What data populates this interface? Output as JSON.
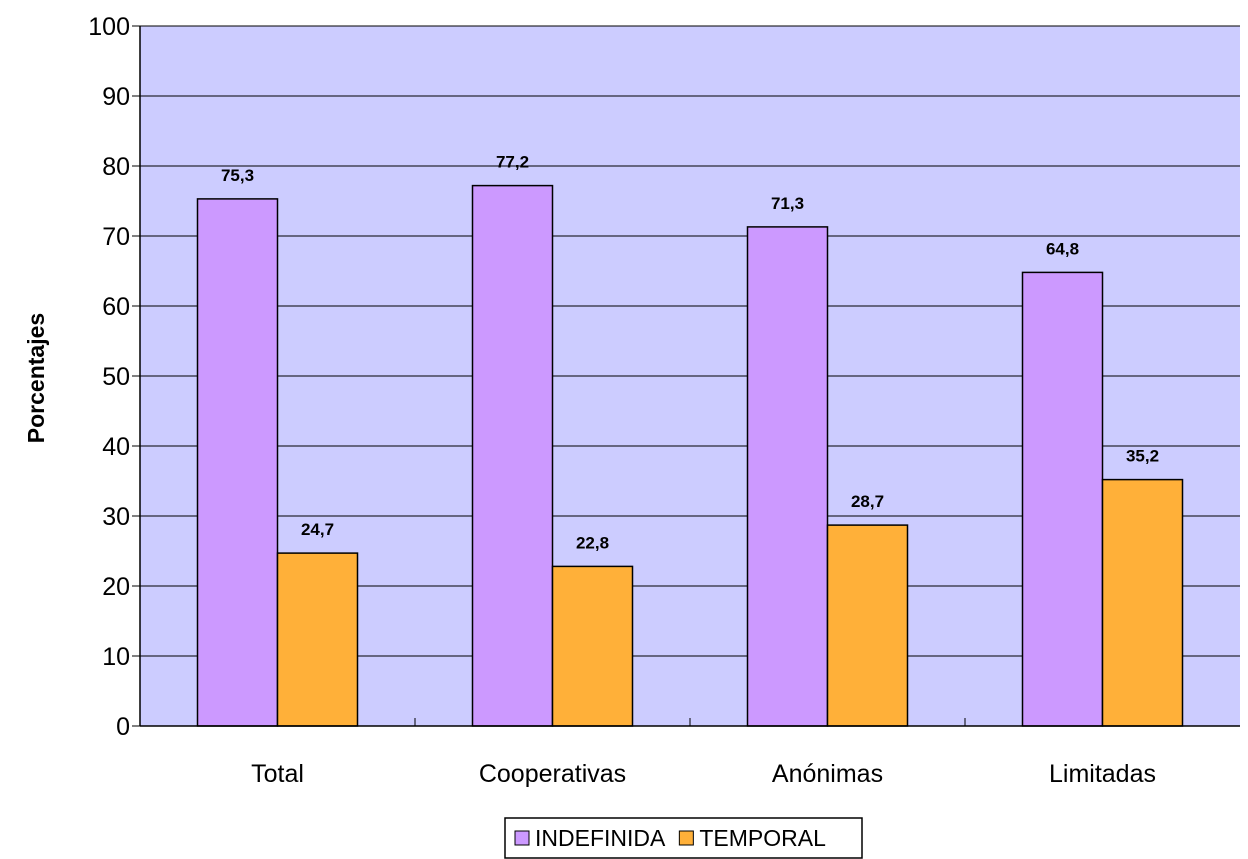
{
  "chart_data": {
    "type": "bar",
    "title": "",
    "xlabel": "",
    "ylabel": "Porcentajes",
    "categories": [
      "Total",
      "Cooperativas",
      "Anónimas",
      "Limitadas"
    ],
    "series": [
      {
        "name": "INDEFINIDA",
        "values": [
          75.3,
          77.2,
          71.3,
          64.8
        ],
        "labels": [
          "75,3",
          "77,2",
          "71,3",
          "64,8"
        ],
        "color": "#CC99FF"
      },
      {
        "name": "TEMPORAL",
        "values": [
          24.7,
          22.8,
          28.7,
          35.2
        ],
        "labels": [
          "24,7",
          "22,8",
          "28,7",
          "35,2"
        ],
        "color": "#FFB039"
      }
    ],
    "ylim": [
      0,
      100
    ],
    "yticks": [
      "0",
      "10",
      "20",
      "30",
      "40",
      "50",
      "60",
      "70",
      "80",
      "90",
      "100"
    ],
    "grid": true,
    "legend": "bottom-center",
    "plot_background": "#CCCCFF"
  }
}
